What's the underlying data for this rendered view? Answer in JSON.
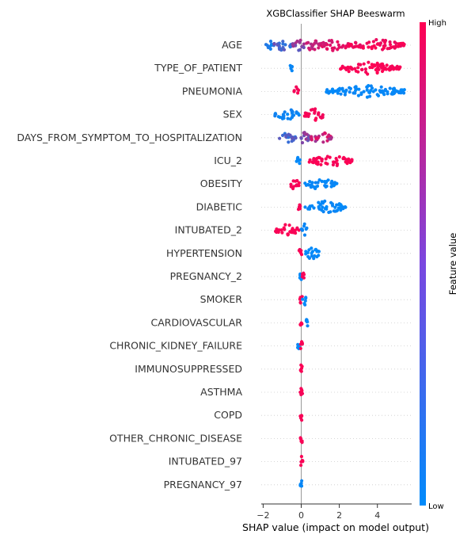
{
  "chart_data": {
    "type": "scatter",
    "subtype": "beeswarm",
    "title": "XGBClassifier SHAP Beeswarm",
    "xlabel": "SHAP value (impact on model output)",
    "ylabel": "",
    "xlim": [
      -2.1,
      5.8
    ],
    "xticks": [
      -2,
      0,
      2,
      4
    ],
    "xtick_labels": [
      "−2",
      "0",
      "2",
      "4"
    ],
    "colorbar": {
      "label": "Feature value",
      "high_label": "High",
      "low_label": "Low",
      "low_color": "#008bfb",
      "high_color": "#ff0052"
    },
    "features": [
      {
        "name": "AGE",
        "ranges": [
          [
            -1.85,
            -1.5,
            0.02,
            0.15
          ],
          [
            -1.5,
            -0.45,
            0.12,
            0.45
          ],
          [
            -0.45,
            0.2,
            0.35,
            0.7
          ],
          [
            0.2,
            1.0,
            0.65,
            0.85
          ],
          [
            1.0,
            2.5,
            0.8,
            0.95
          ],
          [
            2.5,
            5.5,
            0.9,
            1.0
          ]
        ]
      },
      {
        "name": "TYPE_OF_PATIENT",
        "ranges": [
          [
            -0.65,
            -0.45,
            0.0,
            0.05
          ],
          [
            2.0,
            5.2,
            0.95,
            1.0
          ]
        ]
      },
      {
        "name": "PNEUMONIA",
        "ranges": [
          [
            -0.4,
            -0.1,
            0.95,
            1.0
          ],
          [
            1.3,
            5.5,
            0.0,
            0.05
          ]
        ]
      },
      {
        "name": "SEX",
        "ranges": [
          [
            -1.4,
            -0.1,
            0.0,
            0.08
          ],
          [
            0.1,
            1.3,
            0.92,
            1.0
          ]
        ]
      },
      {
        "name": "DAYS_FROM_SYMPTOM_TO_HOSPITALIZATION",
        "ranges": [
          [
            -1.2,
            -0.3,
            0.1,
            0.4
          ],
          [
            -0.3,
            0.5,
            0.3,
            0.7
          ],
          [
            0.5,
            1.6,
            0.6,
            0.95
          ]
        ]
      },
      {
        "name": "ICU_2",
        "ranges": [
          [
            -0.25,
            -0.05,
            0.0,
            0.05
          ],
          [
            0.4,
            2.7,
            0.95,
            1.0
          ]
        ]
      },
      {
        "name": "OBESITY",
        "ranges": [
          [
            -0.7,
            -0.1,
            0.95,
            1.0
          ],
          [
            0.2,
            1.9,
            0.0,
            0.05
          ]
        ]
      },
      {
        "name": "DIABETIC",
        "ranges": [
          [
            -0.35,
            -0.05,
            0.95,
            1.0
          ],
          [
            0.2,
            2.4,
            0.0,
            0.05
          ]
        ]
      },
      {
        "name": "INTUBATED_2",
        "ranges": [
          [
            -1.4,
            -0.1,
            0.95,
            1.0
          ],
          [
            0.0,
            0.35,
            0.0,
            0.05
          ]
        ]
      },
      {
        "name": "HYPERTENSION",
        "ranges": [
          [
            -0.2,
            0.05,
            0.95,
            1.0
          ],
          [
            0.1,
            1.0,
            0.0,
            0.05
          ]
        ]
      },
      {
        "name": "PREGNANCY_2",
        "ranges": [
          [
            -0.15,
            0.05,
            0.0,
            0.05
          ],
          [
            0.05,
            0.15,
            0.95,
            1.0
          ]
        ]
      },
      {
        "name": "SMOKER",
        "ranges": [
          [
            -0.08,
            0.08,
            0.95,
            1.0
          ],
          [
            0.05,
            0.3,
            0.0,
            0.05
          ]
        ]
      },
      {
        "name": "CARDIOVASCULAR",
        "ranges": [
          [
            -0.05,
            0.05,
            0.95,
            1.0
          ],
          [
            0.25,
            0.35,
            0.0,
            0.05
          ]
        ]
      },
      {
        "name": "CHRONIC_KIDNEY_FAILURE",
        "ranges": [
          [
            -0.2,
            -0.1,
            0.0,
            0.05
          ],
          [
            -0.05,
            0.08,
            0.95,
            1.0
          ]
        ]
      },
      {
        "name": "IMMUNOSUPPRESSED",
        "ranges": [
          [
            -0.05,
            0.08,
            0.95,
            1.0
          ]
        ]
      },
      {
        "name": "ASTHMA",
        "ranges": [
          [
            -0.05,
            0.08,
            0.95,
            1.0
          ]
        ]
      },
      {
        "name": "COPD",
        "ranges": [
          [
            -0.05,
            0.08,
            0.95,
            1.0
          ]
        ]
      },
      {
        "name": "OTHER_CHRONIC_DISEASE",
        "ranges": [
          [
            -0.05,
            0.08,
            0.95,
            1.0
          ]
        ]
      },
      {
        "name": "INTUBATED_97",
        "ranges": [
          [
            -0.05,
            0.08,
            0.95,
            1.0
          ]
        ]
      },
      {
        "name": "PREGNANCY_97",
        "ranges": [
          [
            -0.05,
            0.08,
            0.0,
            0.05
          ]
        ]
      }
    ]
  }
}
